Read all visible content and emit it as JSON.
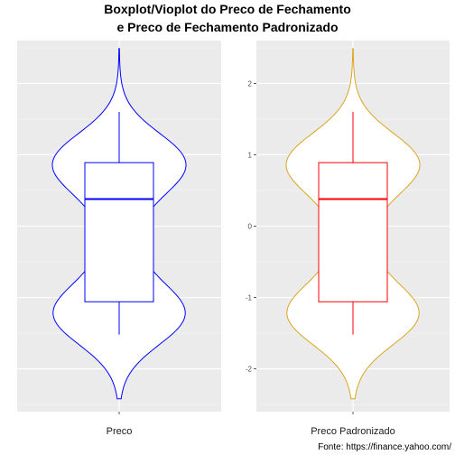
{
  "chart_data": {
    "type": "violin-boxplot",
    "title_line1": "Boxplot/Vioplot do Preco de Fechamento",
    "title_line2": "e Preco de Fechamento Padronizado",
    "caption": "Fonte: https://finance.yahoo.com/",
    "panels": [
      {
        "category": "Preco",
        "violin_color": "#0000ff",
        "box_color": "#0000ff",
        "y_ticks": [],
        "ylim": [
          -2.6,
          2.6
        ],
        "box": {
          "min": -1.52,
          "q1": -1.06,
          "median": 0.38,
          "q3": 0.89,
          "max": 1.6
        },
        "violin_range": [
          -2.42,
          2.49
        ]
      },
      {
        "category": "Preco Padronizado",
        "violin_color": "#daa520",
        "box_color": "#ff0000",
        "y_ticks": [
          -2,
          -1,
          0,
          1,
          2
        ],
        "ylim": [
          -2.6,
          2.6
        ],
        "box": {
          "min": -1.52,
          "q1": -1.06,
          "median": 0.38,
          "q3": 0.89,
          "max": 1.6
        },
        "violin_range": [
          -2.42,
          2.49
        ]
      }
    ]
  }
}
